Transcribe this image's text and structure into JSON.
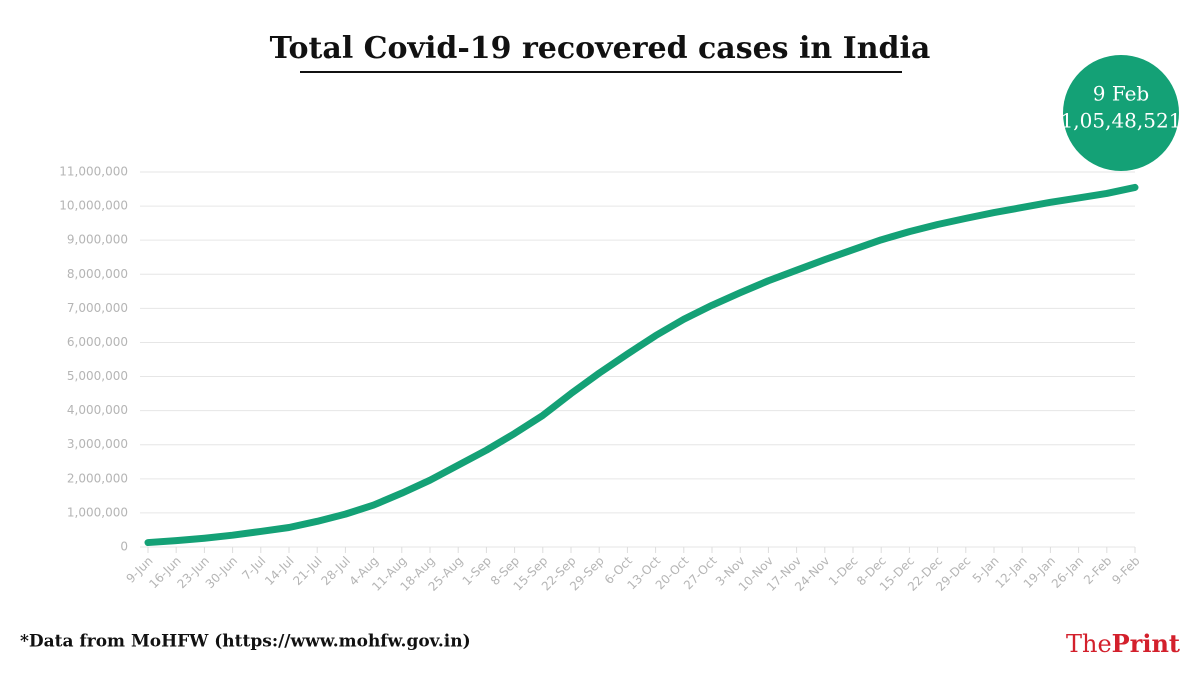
{
  "chart_data": {
    "type": "line",
    "title": "Total Covid-19 recovered cases in India",
    "categories": [
      "9-Jun",
      "16-Jun",
      "23-Jun",
      "30-Jun",
      "7-Jul",
      "14-Jul",
      "21-Jul",
      "28-Jul",
      "4-Aug",
      "11-Aug",
      "18-Aug",
      "25-Aug",
      "1-Sep",
      "8-Sep",
      "15-Sep",
      "22-Sep",
      "29-Sep",
      "6-Oct",
      "13-Oct",
      "20-Oct",
      "27-Oct",
      "3-Nov",
      "10-Nov",
      "17-Nov",
      "24-Nov",
      "1-Dec",
      "8-Dec",
      "15-Dec",
      "22-Dec",
      "29-Dec",
      "5-Jan",
      "12-Jan",
      "19-Jan",
      "26-Jan",
      "2-Feb",
      "9-Feb"
    ],
    "values": [
      130000,
      186000,
      258000,
      347000,
      457000,
      572000,
      753000,
      964000,
      1230000,
      1580000,
      1960000,
      2400000,
      2840000,
      3330000,
      3860000,
      4500000,
      5100000,
      5660000,
      6200000,
      6680000,
      7090000,
      7460000,
      7810000,
      8120000,
      8430000,
      8720000,
      9010000,
      9250000,
      9460000,
      9640000,
      9810000,
      9960000,
      10110000,
      10240000,
      10370000,
      10548521
    ],
    "color": "#14a176",
    "ylim": [
      0,
      11000000
    ],
    "yticks": [
      0,
      {
        "value": 1000000,
        "label": "1,000,000"
      },
      {
        "value": 2000000,
        "label": "2,000,000"
      },
      {
        "value": 3000000,
        "label": "3,000,000"
      },
      {
        "value": 4000000,
        "label": "4,000,000"
      },
      {
        "value": 5000000,
        "label": "5,000,000"
      },
      {
        "value": 6000000,
        "label": "6,000,000"
      },
      {
        "value": 7000000,
        "label": "7,000,000"
      },
      {
        "value": 8000000,
        "label": "8,000,000"
      },
      {
        "value": 9000000,
        "label": "9,000,000"
      },
      {
        "value": 10000000,
        "label": "10,000,000"
      },
      {
        "value": 11000000,
        "label": "11,000,000"
      }
    ],
    "grid": true,
    "annotation": {
      "date": "9 Feb",
      "label": "1,05,48,521"
    },
    "source": "*Data from MoHFW (https://www.mohfw.gov.in)",
    "logo": {
      "first": "The",
      "second": "Print"
    }
  }
}
